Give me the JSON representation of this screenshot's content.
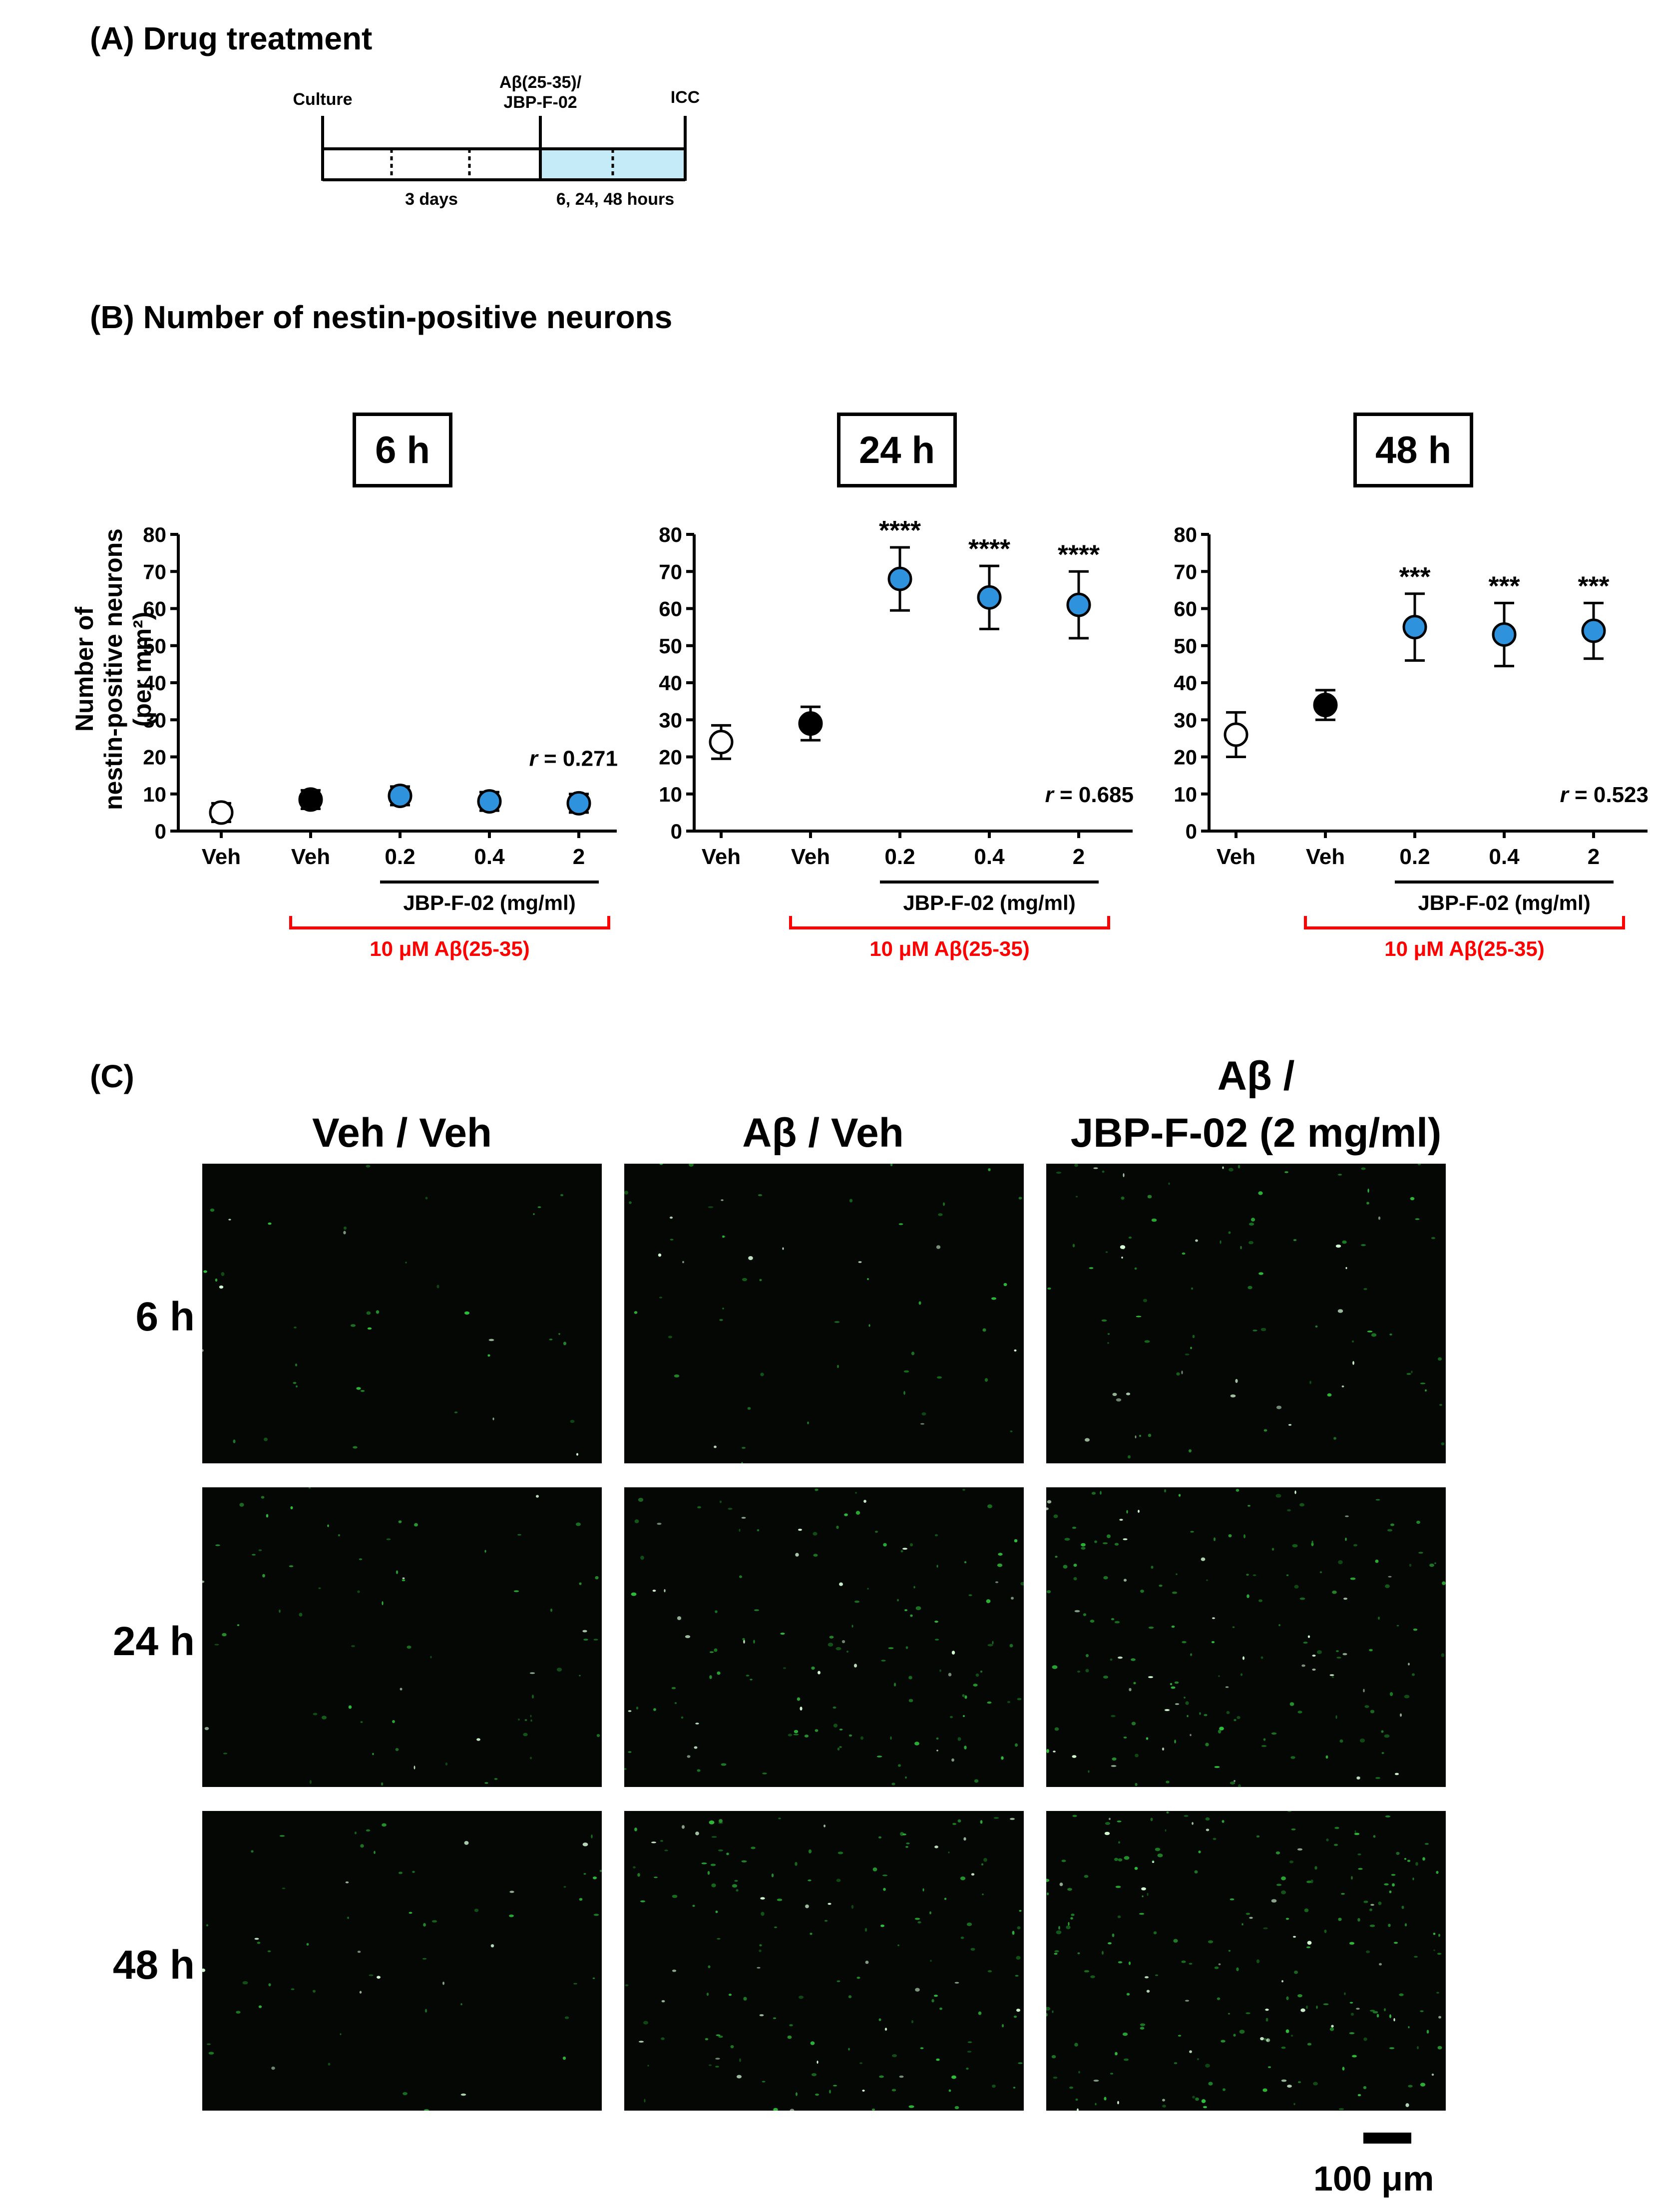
{
  "panel_a": {
    "label": "(A) Drug treatment",
    "culture_label": "Culture",
    "treatment_label_1": "Aβ(25-35)/",
    "treatment_label_2": "JBP-F-02",
    "icc_label": "ICC",
    "duration_1": "3 days",
    "duration_2": "6, 24, 48 hours",
    "highlight_color": "#c6ebf8"
  },
  "panel_b": {
    "label": "(B) Number of nestin-positive neurons",
    "ylabel_line1": "Number of",
    "ylabel_line2": "nestin-positive neurons",
    "ylabel_line3": "(per mm²)"
  },
  "colors": {
    "open": "#ffffff",
    "veh_ab": "#000000",
    "drug": "#2e92dc",
    "red": "#ff0000"
  },
  "chart_data": [
    {
      "type": "scatter",
      "title": "6 h",
      "categories": [
        "Veh",
        "Veh",
        "0.2",
        "0.4",
        "2"
      ],
      "values": [
        5,
        8.5,
        9.5,
        8,
        7.5
      ],
      "errors": [
        2.5,
        2.5,
        2.5,
        2.5,
        2.5
      ],
      "markers": [
        "open",
        "veh_ab",
        "drug",
        "drug",
        "drug"
      ],
      "significance": [
        "",
        "",
        "",
        "",
        ""
      ],
      "yticks": [
        0,
        10,
        20,
        30,
        40,
        50,
        60,
        70,
        80
      ],
      "ylim": [
        0,
        80
      ],
      "r_prefix": "r",
      "r_value": " = 0.271",
      "drug_label": "JBP-F-02 (mg/ml)",
      "abeta_label": "10 μM Aβ(25-35)"
    },
    {
      "type": "scatter",
      "title": "24 h",
      "categories": [
        "Veh",
        "Veh",
        "0.2",
        "0.4",
        "2"
      ],
      "values": [
        24,
        29,
        68,
        63,
        61
      ],
      "errors": [
        4.5,
        4.5,
        8.5,
        8.5,
        9
      ],
      "markers": [
        "open",
        "veh_ab",
        "drug",
        "drug",
        "drug"
      ],
      "significance": [
        "",
        "",
        "****",
        "****",
        "****"
      ],
      "yticks": [
        0,
        10,
        20,
        30,
        40,
        50,
        60,
        70,
        80
      ],
      "ylim": [
        0,
        80
      ],
      "r_prefix": "r",
      "r_value": " = 0.685",
      "drug_label": "JBP-F-02 (mg/ml)",
      "abeta_label": "10 μM Aβ(25-35)"
    },
    {
      "type": "scatter",
      "title": "48 h",
      "categories": [
        "Veh",
        "Veh",
        "0.2",
        "0.4",
        "2"
      ],
      "values": [
        26,
        34,
        55,
        53,
        54
      ],
      "errors": [
        6,
        4,
        9,
        8.5,
        7.5
      ],
      "markers": [
        "open",
        "veh_ab",
        "drug",
        "drug",
        "drug"
      ],
      "significance": [
        "",
        "",
        "***",
        "***",
        "***"
      ],
      "yticks": [
        0,
        10,
        20,
        30,
        40,
        50,
        60,
        70,
        80
      ],
      "ylim": [
        0,
        80
      ],
      "r_prefix": "r",
      "r_value": " = 0.523",
      "drug_label": "JBP-F-02 (mg/ml)",
      "abeta_label": "10 μM Aβ(25-35)"
    }
  ],
  "panel_c": {
    "label": "(C)",
    "col1": "Veh / Veh",
    "col2": "Aβ / Veh",
    "col3_line1": "Aβ /",
    "col3_line2": "JBP-F-02 (2 mg/ml)",
    "row1": "6 h",
    "row2": "24 h",
    "row3": "48 h",
    "scale_bar_label": "100 μm"
  }
}
